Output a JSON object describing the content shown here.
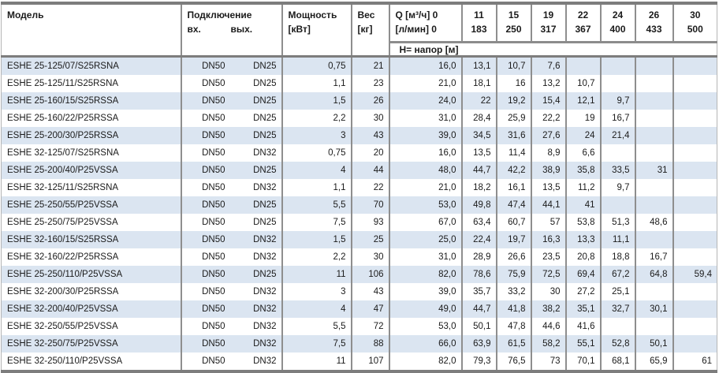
{
  "table": {
    "headers": {
      "model": "Модель",
      "connection": "Подключение",
      "conn_in": "вх.",
      "conn_out": "вых.",
      "power_line1": "Мощность",
      "power_line2": "[кВт]",
      "weight_line1": "Вес",
      "weight_line2": "[кг]",
      "q_line1": "Q [м³/ч] 0",
      "q_line2": "[л/мин] 0",
      "head_row": "Н= напор [м]",
      "q_m3h": [
        "11",
        "15",
        "19",
        "22",
        "24",
        "26",
        "30"
      ],
      "q_lmin": [
        "183",
        "250",
        "317",
        "367",
        "400",
        "433",
        "500"
      ]
    },
    "rows": [
      {
        "model": "ESHE 25-125/07/S25RSNA",
        "in": "DN50",
        "out": "DN25",
        "power": "0,75",
        "weight": "21",
        "h": [
          "16,0",
          "13,1",
          "10,7",
          "7,6",
          "",
          "",
          "",
          ""
        ]
      },
      {
        "model": "ESHE 25-125/11/S25RSNA",
        "in": "DN50",
        "out": "DN25",
        "power": "1,1",
        "weight": "23",
        "h": [
          "21,0",
          "18,1",
          "16",
          "13,2",
          "10,7",
          "",
          "",
          ""
        ]
      },
      {
        "model": "ESHE 25-160/15/S25RSSA",
        "in": "DN50",
        "out": "DN25",
        "power": "1,5",
        "weight": "26",
        "h": [
          "24,0",
          "22",
          "19,2",
          "15,4",
          "12,1",
          "9,7",
          "",
          ""
        ]
      },
      {
        "model": "ESHE 25-160/22/P25RSSA",
        "in": "DN50",
        "out": "DN25",
        "power": "2,2",
        "weight": "30",
        "h": [
          "31,0",
          "28,4",
          "25,9",
          "22,2",
          "19",
          "16,7",
          "",
          ""
        ]
      },
      {
        "model": "ESHE 25-200/30/P25RSSA",
        "in": "DN50",
        "out": "DN25",
        "power": "3",
        "weight": "43",
        "h": [
          "39,0",
          "34,5",
          "31,6",
          "27,6",
          "24",
          "21,4",
          "",
          ""
        ]
      },
      {
        "model": "ESHE 32-125/07/S25RSNA",
        "in": "DN50",
        "out": "DN32",
        "power": "0,75",
        "weight": "20",
        "h": [
          "16,0",
          "13,5",
          "11,4",
          "8,9",
          "6,6",
          "",
          "",
          ""
        ]
      },
      {
        "model": "ESHE 25-200/40/P25VSSA",
        "in": "DN50",
        "out": "DN25",
        "power": "4",
        "weight": "44",
        "h": [
          "48,0",
          "44,7",
          "42,2",
          "38,9",
          "35,8",
          "33,5",
          "31",
          ""
        ]
      },
      {
        "model": "ESHE 32-125/11/S25RSNA",
        "in": "DN50",
        "out": "DN32",
        "power": "1,1",
        "weight": "22",
        "h": [
          "21,0",
          "18,2",
          "16,1",
          "13,5",
          "11,2",
          "9,7",
          "",
          ""
        ]
      },
      {
        "model": "ESHE 25-250/55/P25VSSA",
        "in": "DN50",
        "out": "DN25",
        "power": "5,5",
        "weight": "70",
        "h": [
          "53,0",
          "49,8",
          "47,4",
          "44,1",
          "41",
          "",
          "",
          ""
        ]
      },
      {
        "model": "ESHE 25-250/75/P25VSSA",
        "in": "DN50",
        "out": "DN25",
        "power": "7,5",
        "weight": "93",
        "h": [
          "67,0",
          "63,4",
          "60,7",
          "57",
          "53,8",
          "51,3",
          "48,6",
          ""
        ]
      },
      {
        "model": "ESHE 32-160/15/S25RSSA",
        "in": "DN50",
        "out": "DN32",
        "power": "1,5",
        "weight": "25",
        "h": [
          "25,0",
          "22,4",
          "19,7",
          "16,3",
          "13,3",
          "11,1",
          "",
          ""
        ]
      },
      {
        "model": "ESHE 32-160/22/P25RSSA",
        "in": "DN50",
        "out": "DN32",
        "power": "2,2",
        "weight": "30",
        "h": [
          "31,0",
          "28,9",
          "26,6",
          "23,5",
          "20,8",
          "18,8",
          "16,7",
          ""
        ]
      },
      {
        "model": "ESHE 25-250/110/P25VSSA",
        "in": "DN50",
        "out": "DN25",
        "power": "11",
        "weight": "106",
        "h": [
          "82,0",
          "78,6",
          "75,9",
          "72,5",
          "69,4",
          "67,2",
          "64,8",
          "59,4"
        ]
      },
      {
        "model": "ESHE 32-200/30/P25RSSA",
        "in": "DN50",
        "out": "DN32",
        "power": "3",
        "weight": "43",
        "h": [
          "39,0",
          "35,7",
          "33,2",
          "30",
          "27,2",
          "25,1",
          "",
          ""
        ]
      },
      {
        "model": "ESHE 32-200/40/P25VSSA",
        "in": "DN50",
        "out": "DN32",
        "power": "4",
        "weight": "47",
        "h": [
          "49,0",
          "44,7",
          "41,8",
          "38,2",
          "35,1",
          "32,7",
          "30,1",
          ""
        ]
      },
      {
        "model": "ESHE 32-250/55/P25VSSA",
        "in": "DN50",
        "out": "DN32",
        "power": "5,5",
        "weight": "72",
        "h": [
          "53,0",
          "50,1",
          "47,8",
          "44,6",
          "41,6",
          "",
          "",
          ""
        ]
      },
      {
        "model": "ESHE 32-250/75/P25VSSA",
        "in": "DN50",
        "out": "DN32",
        "power": "7,5",
        "weight": "88",
        "h": [
          "66,0",
          "63,9",
          "61,5",
          "58,2",
          "55,1",
          "52,8",
          "50,1",
          ""
        ]
      },
      {
        "model": "ESHE 32-250/110/P25VSSA",
        "in": "DN50",
        "out": "DN32",
        "power": "11",
        "weight": "107",
        "h": [
          "82,0",
          "79,3",
          "76,5",
          "73",
          "70,1",
          "68,1",
          "65,9",
          "61"
        ]
      }
    ]
  },
  "colors": {
    "stripe_blue": "#dbe5f1",
    "border_gray": "#8e8e8e",
    "thick_border_gray": "#7d7d7d",
    "text": "#1b1b1b"
  }
}
